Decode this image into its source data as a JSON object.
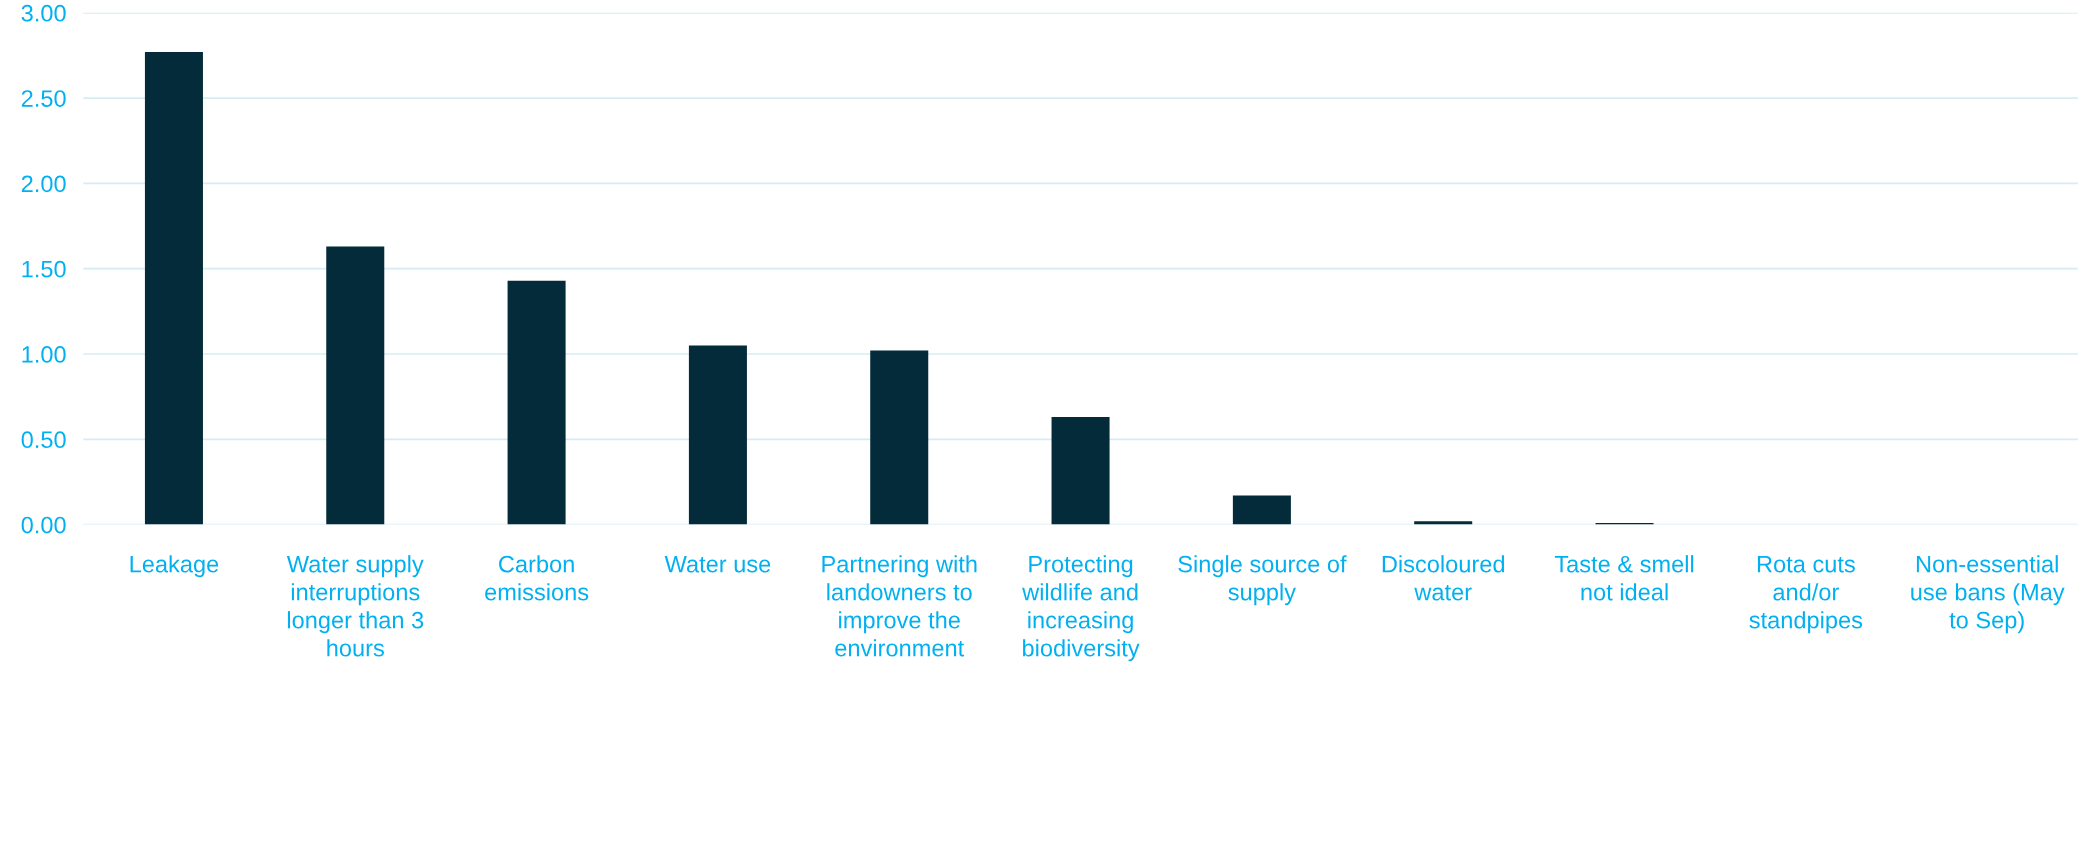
{
  "chart_data": {
    "type": "bar",
    "categories": [
      "Leakage",
      "Water supply\ninterruptions\nlonger than 3\nhours",
      "Carbon\nemissions",
      "Water use",
      "Partnering with\nlandowners to\nimprove the\nenvironment",
      "Protecting\nwildlife and\nincreasing\nbiodiversity",
      "Single source of\nsupply",
      "Discoloured\nwater",
      "Taste & smell\nnot ideal",
      "Rota cuts\nand/or\nstandpipes",
      "Non-essential\nuse bans (May\nto Sep)"
    ],
    "values": [
      2.77,
      1.63,
      1.43,
      1.05,
      1.02,
      0.63,
      0.17,
      0.02,
      0.01,
      0,
      0
    ],
    "color": "#032b3a",
    "ylim": [
      0,
      3
    ],
    "yticks": [
      {
        "value": 0,
        "label": "0.00"
      },
      {
        "value": 0.5,
        "label": "0.50"
      },
      {
        "value": 1,
        "label": "1.00"
      },
      {
        "value": 1.5,
        "label": "1.50"
      },
      {
        "value": 2,
        "label": "2.00"
      },
      {
        "value": 2.5,
        "label": "2.50"
      },
      {
        "value": 3,
        "label": "3.00"
      }
    ],
    "grid": "y"
  }
}
